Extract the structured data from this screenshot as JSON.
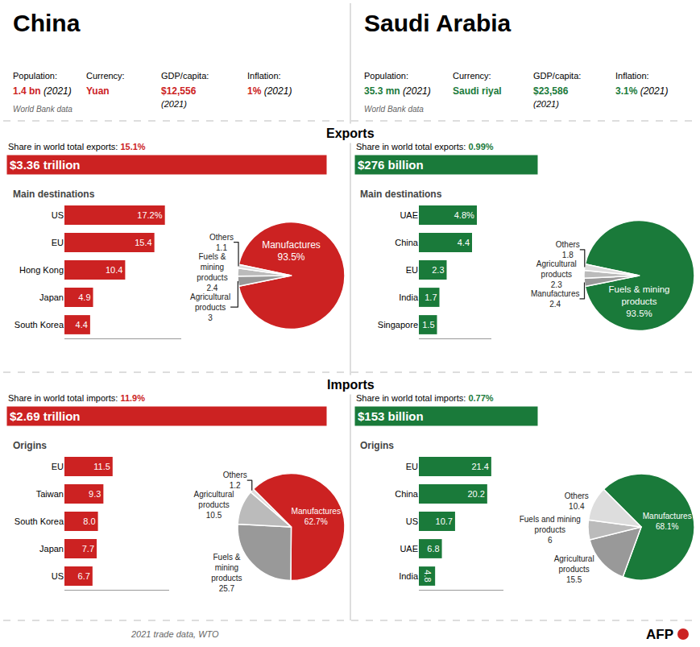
{
  "chart_data": [
    {
      "type": "bar",
      "title": "Main destinations",
      "orientation": "horizontal",
      "categories": [
        "US",
        "EU",
        "Hong Kong",
        "Japan",
        "South Korea"
      ],
      "values": [
        17.2,
        15.4,
        10.4,
        4.9,
        4.4
      ],
      "value_labels": [
        "17.2%",
        "15.4",
        "10.4",
        "4.9",
        "4.4"
      ],
      "data_labels": true,
      "color": "#cc2222",
      "xlim": [
        0,
        20
      ],
      "grid": false,
      "tick_labels": "y"
    },
    {
      "type": "pie",
      "categories": [
        "Manufactures",
        "Agricultural\nproducts",
        "Fuels &\nmining\nproducts",
        "Others"
      ],
      "values": [
        93.5,
        3.0,
        2.4,
        1.1
      ],
      "value_labels": [
        "93.5%",
        "3",
        "2.4",
        "1.1"
      ],
      "data_labels": true,
      "colors": [
        "#cc2222",
        "#999999",
        "#bbbbbb",
        "#dddddd"
      ]
    },
    {
      "type": "bar",
      "title": "Main destinations",
      "orientation": "horizontal",
      "categories": [
        "UAE",
        "China",
        "EU",
        "India",
        "Singapore"
      ],
      "values": [
        4.8,
        4.4,
        2.3,
        1.7,
        1.5
      ],
      "value_labels": [
        "4.8%",
        "4.4",
        "2.3",
        "1.7",
        "1.5"
      ],
      "data_labels": true,
      "color": "#1a7a3a",
      "xlim": [
        0,
        6
      ],
      "grid": false,
      "tick_labels": "y"
    },
    {
      "type": "pie",
      "categories": [
        "Fuels & mining\nproducts",
        "Manufactures",
        "Agricultural\nproducts",
        "Others"
      ],
      "values": [
        93.5,
        2.4,
        2.3,
        1.8
      ],
      "value_labels": [
        "93.5%",
        "2.4",
        "2.3",
        "1.8"
      ],
      "data_labels": true,
      "colors": [
        "#1a7a3a",
        "#999999",
        "#bbbbbb",
        "#dddddd"
      ]
    },
    {
      "type": "bar",
      "title": "Origins",
      "orientation": "horizontal",
      "categories": [
        "EU",
        "Taiwan",
        "South Korea",
        "Japan",
        "US"
      ],
      "values": [
        11.5,
        9.3,
        8.0,
        7.7,
        6.7
      ],
      "value_labels": [
        "11.5",
        "9.3",
        "8.0",
        "7.7",
        "6.7"
      ],
      "data_labels": true,
      "color": "#cc2222",
      "xlim": [
        0,
        25
      ],
      "grid": false,
      "tick_labels": "y"
    },
    {
      "type": "pie",
      "categories": [
        "Manufactures",
        "Fuels &\nmining\nproducts",
        "Agricultural\nproducts",
        "Others"
      ],
      "values": [
        62.7,
        25.7,
        10.5,
        1.2
      ],
      "value_labels": [
        "62.7%",
        "25.7",
        "10.5",
        "1.2"
      ],
      "data_labels": true,
      "colors": [
        "#cc2222",
        "#999999",
        "#bbbbbb",
        "#dddddd"
      ]
    },
    {
      "type": "bar",
      "title": "Origins",
      "orientation": "horizontal",
      "categories": [
        "EU",
        "China",
        "US",
        "UAE",
        "India"
      ],
      "values": [
        21.4,
        20.2,
        10.7,
        6.8,
        4.8
      ],
      "data_labels": true,
      "color": "#1a7a3a",
      "xlim": [
        0,
        25
      ],
      "grid": false,
      "tick_labels": "y"
    },
    {
      "type": "pie",
      "categories": [
        "Manufactures",
        "Agricultural\nproducts",
        "Fuels and mining\nproducts",
        "Others"
      ],
      "values": [
        68.1,
        15.5,
        6,
        10.4
      ],
      "value_labels": [
        "68.1%",
        "15.5",
        "6",
        "10.4"
      ],
      "data_labels": true,
      "colors": [
        "#1a7a3a",
        "#999999",
        "#bbbbbb",
        "#dddddd"
      ]
    }
  ],
  "annotations": [
    "China",
    "Population:",
    "Currency:",
    "GDP/capita:",
    "Inflation:",
    "1.4 bn",
    "(2021)",
    "Yuan",
    "$12,556",
    "(2021)",
    "1%",
    "(2021)",
    "World Bank data",
    "Saudi Arabia",
    "Population:",
    "Currency:",
    "GDP/capita:",
    "Inflation:",
    "35.3 mn",
    "(2021)",
    "Saudi riyal",
    "$23,586",
    "(2021)",
    "3.1%",
    "(2021)",
    "World Bank data",
    "Exports",
    "Share in world total exports:",
    "15.1%",
    "$3.36 trillion",
    "Share in world total exports:",
    "0.99%",
    "$276 billion",
    "Imports",
    "Share in world total imports:",
    "11.9%",
    "$2.69 trillion",
    "Share in world total imports:",
    "0.77%",
    "$153 billion",
    "2021 trade data, WTO",
    "AFP"
  ]
}
